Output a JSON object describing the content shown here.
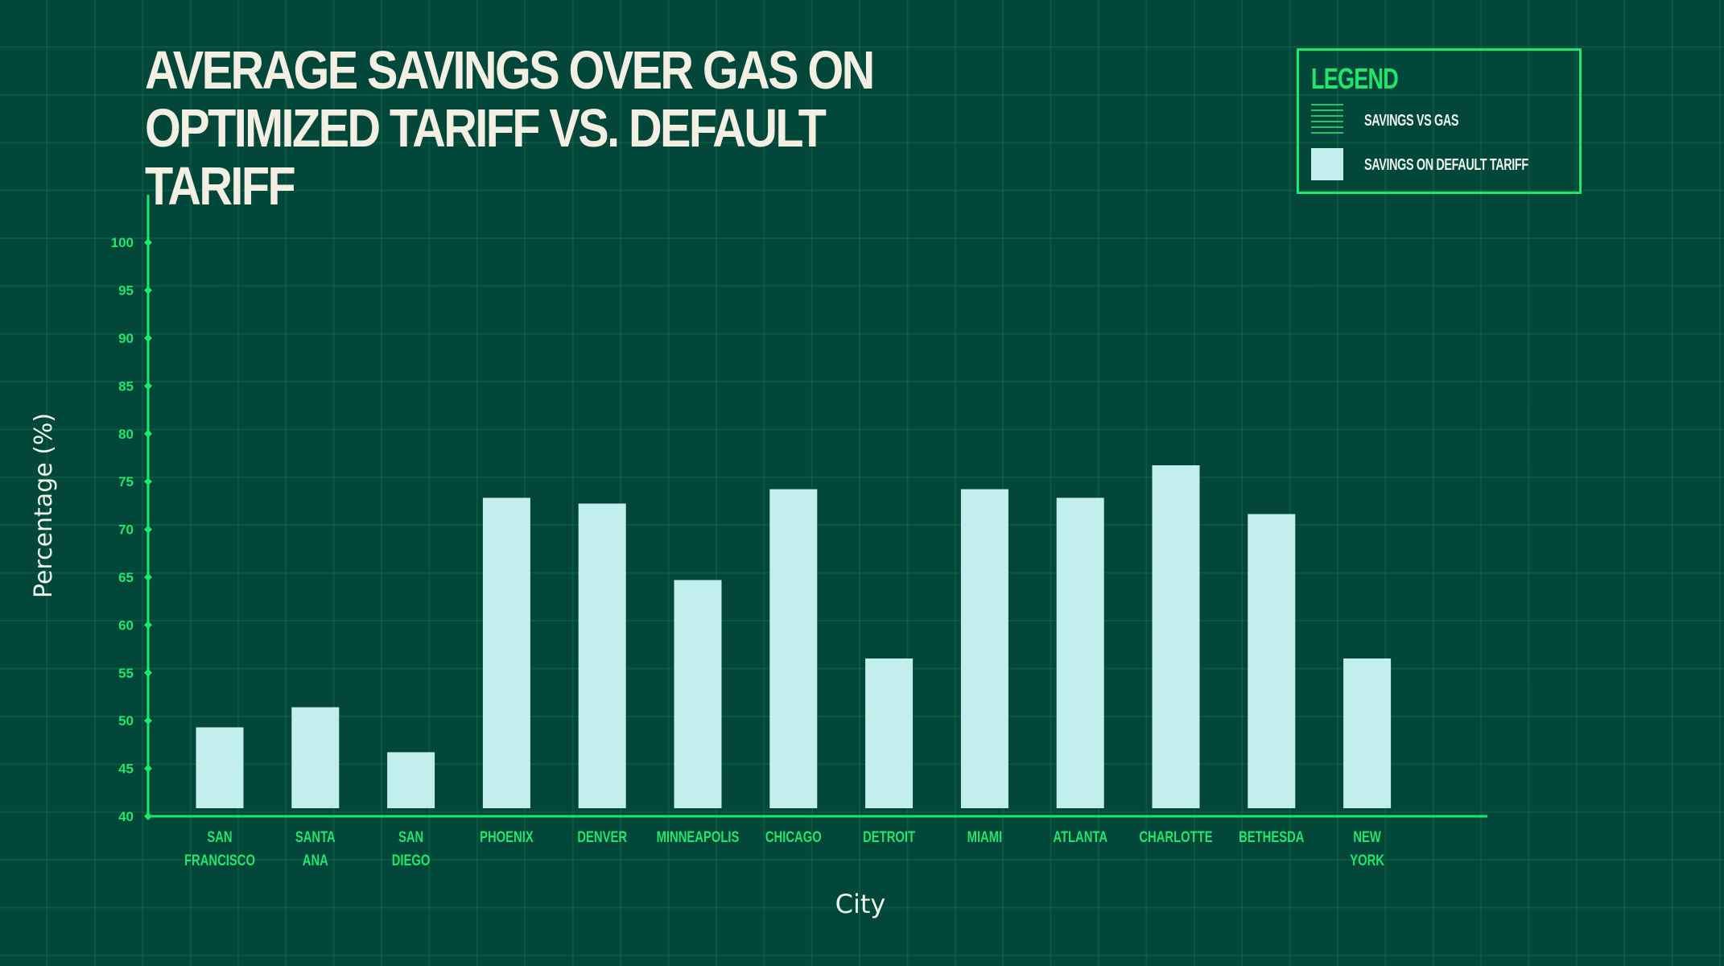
{
  "title": "AVERAGE SAVINGS OVER GAS ON OPTIMIZED TARIFF VS. DEFAULT TARIFF",
  "legend": {
    "title": "LEGEND",
    "items": [
      {
        "label": "SAVINGS VS GAS",
        "swatch": "hatched-green"
      },
      {
        "label": "SAVINGS ON DEFAULT TARIFF",
        "swatch": "light-cyan"
      }
    ]
  },
  "colors": {
    "background": "#03463a",
    "grid": "#1f7a52",
    "axis": "#1ee86b",
    "tick_text": "#22e56c",
    "bar": "#c2eeed",
    "title": "#f4efe3",
    "label_text": "#eef4ea"
  },
  "chart_data": {
    "type": "bar",
    "title": "AVERAGE SAVINGS OVER GAS ON OPTIMIZED TARIFF VS. DEFAULT TARIFF",
    "xlabel": "City",
    "ylabel": "Percentage (%)",
    "ylim": [
      40,
      100
    ],
    "yticks": [
      40,
      45,
      50,
      55,
      60,
      65,
      70,
      75,
      80,
      85,
      90,
      95,
      100
    ],
    "categories": [
      "SAN FRANCISCO",
      "SANTA ANA",
      "SAN DIEGO",
      "PHOENIX",
      "DENVER",
      "MINNEAPOLIS",
      "CHICAGO",
      "DETROIT",
      "MIAMI",
      "ATLANTA",
      "CHARLOTTE",
      "BETHESDA",
      "NEW YORK"
    ],
    "category_lines": [
      [
        "SAN",
        "FRANCISCO"
      ],
      [
        "SANTA",
        "ANA"
      ],
      [
        "SAN",
        "DIEGO"
      ],
      [
        "PHOENIX"
      ],
      [
        "DENVER"
      ],
      [
        "MINNEAPOLIS"
      ],
      [
        "CHICAGO"
      ],
      [
        "DETROIT"
      ],
      [
        "MIAMI"
      ],
      [
        "ATLANTA"
      ],
      [
        "CHARLOTTE"
      ],
      [
        "BETHESDA"
      ],
      [
        "NEW",
        "YORK"
      ]
    ],
    "series": [
      {
        "name": "SAVINGS ON DEFAULT TARIFF",
        "values": [
          49.3,
          51.4,
          46.7,
          73.3,
          72.7,
          64.7,
          74.2,
          56.5,
          74.2,
          73.3,
          76.7,
          71.6,
          56.5
        ]
      }
    ],
    "grid": true,
    "legend_position": "top-right"
  }
}
